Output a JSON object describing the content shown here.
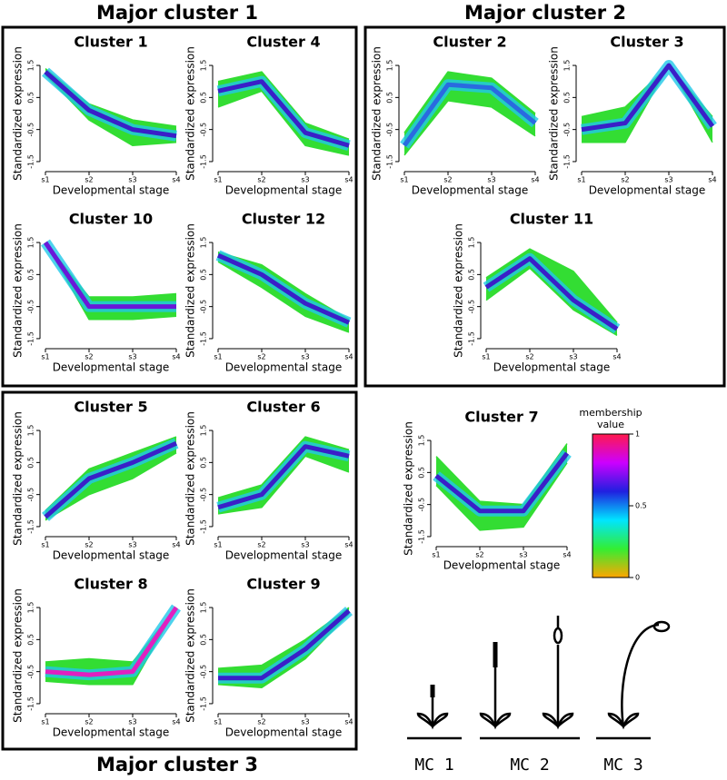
{
  "groups": [
    "Major cluster 1",
    "Major cluster 2",
    "Major cluster 3"
  ],
  "chart_data": [
    {
      "type": "line",
      "title": "Cluster 1",
      "categories": [
        "s1",
        "s2",
        "s3",
        "s4"
      ],
      "xlabel": "Developmental stage",
      "ylabel": "Standardized expression",
      "ylim": [
        -1.7,
        1.7
      ],
      "yticks": [
        -1.5,
        -0.5,
        0.5,
        1.5
      ],
      "series": [
        {
          "color": "#33dd33",
          "values": [
            1.4,
            0.3,
            -0.2,
            -0.4
          ]
        },
        {
          "color": "#33dd33",
          "values": [
            1.2,
            -0.2,
            -1.0,
            -0.9
          ]
        },
        {
          "color": "#3a1fc8",
          "values": [
            1.3,
            0.1,
            -0.5,
            -0.7
          ]
        }
      ]
    },
    {
      "type": "line",
      "title": "Cluster 4",
      "categories": [
        "s1",
        "s2",
        "s3",
        "s4"
      ],
      "xlabel": "Developmental stage",
      "ylabel": "Standardized expression",
      "ylim": [
        -1.7,
        1.7
      ],
      "yticks": [
        -1.5,
        -0.5,
        0.5,
        1.5
      ],
      "series": [
        {
          "color": "#33dd33",
          "values": [
            1.0,
            1.3,
            -0.3,
            -0.8
          ]
        },
        {
          "color": "#33dd33",
          "values": [
            0.2,
            0.7,
            -1.0,
            -1.3
          ]
        },
        {
          "color": "#3a1fc8",
          "values": [
            0.7,
            1.0,
            -0.6,
            -1.0
          ]
        }
      ]
    },
    {
      "type": "line",
      "title": "Cluster 10",
      "categories": [
        "s1",
        "s2",
        "s3",
        "s4"
      ],
      "xlabel": "Developmental stage",
      "ylabel": "Standardized expression",
      "ylim": [
        -1.7,
        1.7
      ],
      "yticks": [
        -1.5,
        -0.5,
        0.5,
        1.5
      ],
      "series": [
        {
          "color": "#33dd33",
          "values": [
            1.5,
            -0.2,
            -0.2,
            -0.1
          ]
        },
        {
          "color": "#33dd33",
          "values": [
            1.5,
            -0.9,
            -0.9,
            -0.8
          ]
        },
        {
          "color": "#6a18d8",
          "values": [
            1.5,
            -0.5,
            -0.5,
            -0.5
          ]
        }
      ]
    },
    {
      "type": "line",
      "title": "Cluster 12",
      "categories": [
        "s1",
        "s2",
        "s3",
        "s4"
      ],
      "xlabel": "Developmental stage",
      "ylabel": "Standardized expression",
      "ylim": [
        -1.7,
        1.7
      ],
      "yticks": [
        -1.5,
        -0.5,
        0.5,
        1.5
      ],
      "series": [
        {
          "color": "#33dd33",
          "values": [
            1.2,
            0.8,
            -0.1,
            -0.9
          ]
        },
        {
          "color": "#33dd33",
          "values": [
            0.9,
            0.1,
            -0.8,
            -1.3
          ]
        },
        {
          "color": "#3a1fc8",
          "values": [
            1.1,
            0.5,
            -0.4,
            -1.0
          ]
        }
      ]
    },
    {
      "type": "line",
      "title": "Cluster 2",
      "categories": [
        "s1",
        "s2",
        "s3",
        "s4"
      ],
      "xlabel": "Developmental stage",
      "ylabel": "Standardized expression",
      "ylim": [
        -1.7,
        1.7
      ],
      "yticks": [
        -1.5,
        -0.5,
        0.5,
        1.5
      ],
      "series": [
        {
          "color": "#33dd33",
          "values": [
            -0.6,
            1.3,
            1.1,
            0.0
          ]
        },
        {
          "color": "#33dd33",
          "values": [
            -1.3,
            0.4,
            0.2,
            -0.7
          ]
        },
        {
          "color": "#2a6ae0",
          "values": [
            -1.0,
            0.9,
            0.8,
            -0.3
          ]
        }
      ]
    },
    {
      "type": "line",
      "title": "Cluster 3",
      "categories": [
        "s1",
        "s2",
        "s3",
        "s4"
      ],
      "xlabel": "Developmental stage",
      "ylabel": "Standardized expression",
      "ylim": [
        -1.7,
        1.7
      ],
      "yticks": [
        -1.5,
        -0.5,
        0.5,
        1.5
      ],
      "series": [
        {
          "color": "#33dd33",
          "values": [
            -0.1,
            0.2,
            1.5,
            -0.1
          ]
        },
        {
          "color": "#33dd33",
          "values": [
            -0.9,
            -0.9,
            1.5,
            -0.9
          ]
        },
        {
          "color": "#3a1fc8",
          "values": [
            -0.5,
            -0.3,
            1.5,
            -0.4
          ]
        }
      ]
    },
    {
      "type": "line",
      "title": "Cluster 11",
      "categories": [
        "s1",
        "s2",
        "s3",
        "s4"
      ],
      "xlabel": "Developmental stage",
      "ylabel": "Standardized expression",
      "ylim": [
        -1.7,
        1.7
      ],
      "yticks": [
        -1.5,
        -0.5,
        0.5,
        1.5
      ],
      "series": [
        {
          "color": "#33dd33",
          "values": [
            0.4,
            1.3,
            0.6,
            -1.0
          ]
        },
        {
          "color": "#33dd33",
          "values": [
            -0.3,
            0.7,
            -0.6,
            -1.4
          ]
        },
        {
          "color": "#3a1fc8",
          "values": [
            0.1,
            1.0,
            -0.3,
            -1.2
          ]
        }
      ]
    },
    {
      "type": "line",
      "title": "Cluster 5",
      "categories": [
        "s1",
        "s2",
        "s3",
        "s4"
      ],
      "xlabel": "Developmental stage",
      "ylabel": "Standardized expression",
      "ylim": [
        -1.7,
        1.7
      ],
      "yticks": [
        -1.5,
        -0.5,
        0.5,
        1.5
      ],
      "series": [
        {
          "color": "#33dd33",
          "values": [
            -1.0,
            0.3,
            0.8,
            1.3
          ]
        },
        {
          "color": "#33dd33",
          "values": [
            -1.3,
            -0.5,
            0.0,
            0.8
          ]
        },
        {
          "color": "#3a1fc8",
          "values": [
            -1.2,
            0.0,
            0.5,
            1.1
          ]
        }
      ]
    },
    {
      "type": "line",
      "title": "Cluster 6",
      "categories": [
        "s1",
        "s2",
        "s3",
        "s4"
      ],
      "xlabel": "Developmental stage",
      "ylabel": "Standardized expression",
      "ylim": [
        -1.7,
        1.7
      ],
      "yticks": [
        -1.5,
        -0.5,
        0.5,
        1.5
      ],
      "series": [
        {
          "color": "#33dd33",
          "values": [
            -0.6,
            -0.2,
            1.3,
            0.9
          ]
        },
        {
          "color": "#33dd33",
          "values": [
            -1.1,
            -0.9,
            0.7,
            0.2
          ]
        },
        {
          "color": "#3a1fc8",
          "values": [
            -0.9,
            -0.5,
            1.0,
            0.7
          ]
        }
      ]
    },
    {
      "type": "line",
      "title": "Cluster 8",
      "categories": [
        "s1",
        "s2",
        "s3",
        "s4"
      ],
      "xlabel": "Developmental stage",
      "ylabel": "Standardized expression",
      "ylim": [
        -1.7,
        1.7
      ],
      "yticks": [
        -1.5,
        -0.5,
        0.5,
        1.5
      ],
      "series": [
        {
          "color": "#33dd33",
          "values": [
            -0.2,
            -0.1,
            -0.2,
            1.5
          ]
        },
        {
          "color": "#33dd33",
          "values": [
            -0.8,
            -0.9,
            -0.9,
            1.5
          ]
        },
        {
          "color": "#e020c0",
          "values": [
            -0.5,
            -0.6,
            -0.5,
            1.5
          ]
        }
      ]
    },
    {
      "type": "line",
      "title": "Cluster 9",
      "categories": [
        "s1",
        "s2",
        "s3",
        "s4"
      ],
      "xlabel": "Developmental stage",
      "ylabel": "Standardized expression",
      "ylim": [
        -1.7,
        1.7
      ],
      "yticks": [
        -1.5,
        -0.5,
        0.5,
        1.5
      ],
      "series": [
        {
          "color": "#33dd33",
          "values": [
            -0.4,
            -0.3,
            0.5,
            1.5
          ]
        },
        {
          "color": "#33dd33",
          "values": [
            -0.9,
            -1.0,
            -0.1,
            1.3
          ]
        },
        {
          "color": "#3a1fc8",
          "values": [
            -0.7,
            -0.7,
            0.2,
            1.4
          ]
        }
      ]
    },
    {
      "type": "line",
      "title": "Cluster 7",
      "categories": [
        "s1",
        "s2",
        "s3",
        "s4"
      ],
      "xlabel": "Developmental stage",
      "ylabel": "Standardized expression",
      "ylim": [
        -1.7,
        1.7
      ],
      "yticks": [
        -1.5,
        -0.5,
        0.5,
        1.5
      ],
      "series": [
        {
          "color": "#33dd33",
          "values": [
            1.0,
            -0.4,
            -0.5,
            1.4
          ]
        },
        {
          "color": "#33dd33",
          "values": [
            0.1,
            -1.3,
            -1.2,
            0.8
          ]
        },
        {
          "color": "#3a1fc8",
          "values": [
            0.4,
            -0.7,
            -0.7,
            1.1
          ]
        }
      ]
    }
  ],
  "colorbar": {
    "title": "membership value",
    "lim": [
      0,
      1
    ],
    "ticks": [
      0,
      0.5,
      1
    ],
    "colors": [
      "#ff1a4d",
      "#cc00ff",
      "#2020e0",
      "#00e5ff",
      "#33ee33",
      "#ffa500"
    ]
  },
  "stages": [
    "MC 1",
    "MC 2",
    "MC 3"
  ]
}
